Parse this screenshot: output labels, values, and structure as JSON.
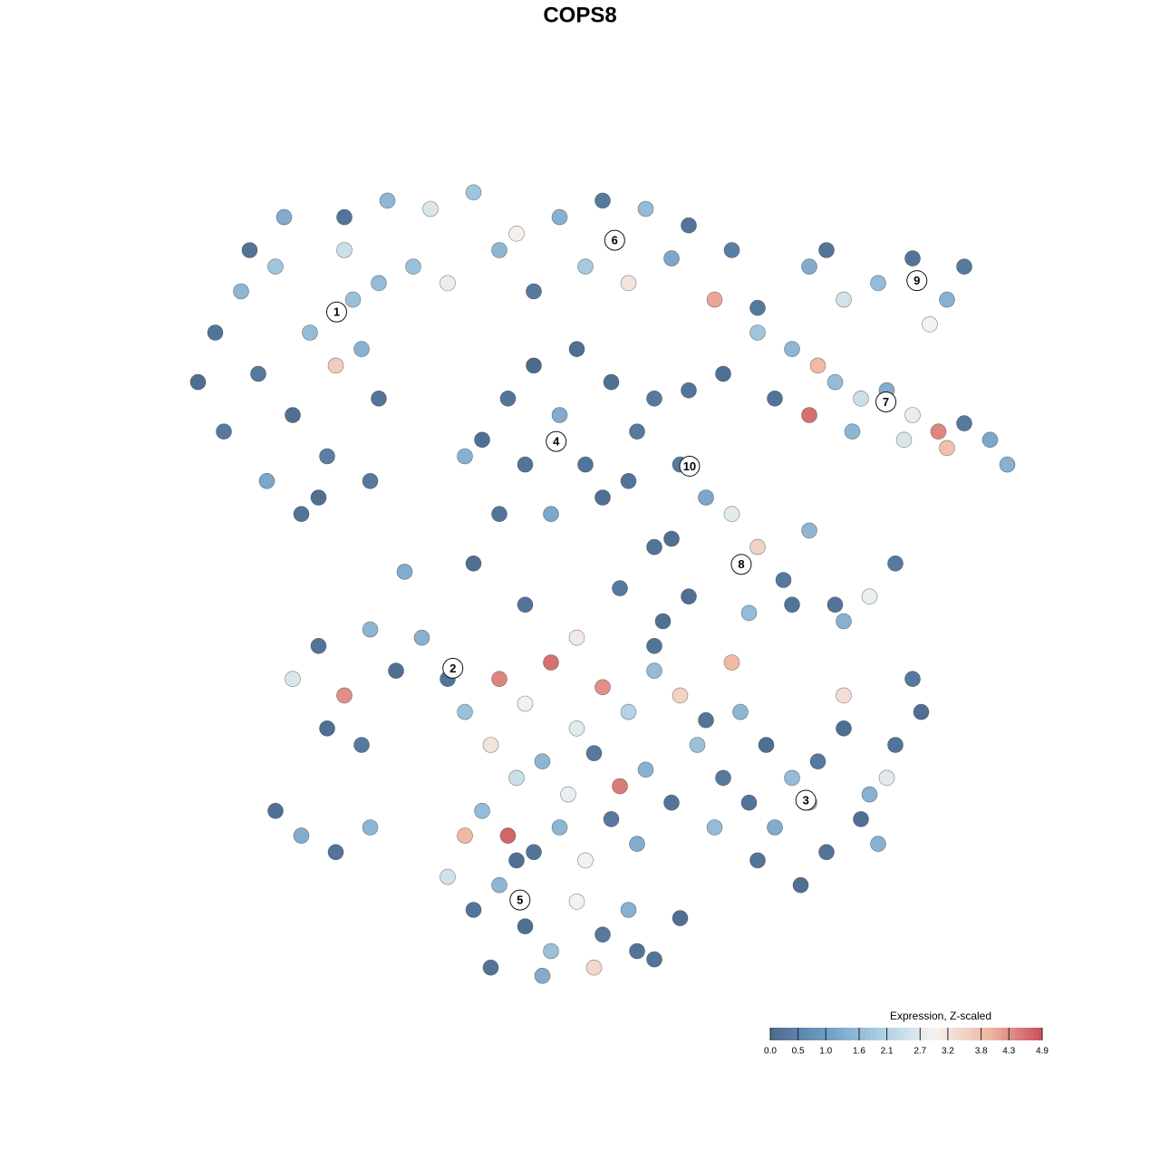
{
  "chart_data": {
    "type": "scatter",
    "title": "COPS8",
    "xlim": [
      -50,
      50
    ],
    "ylim": [
      -50,
      50
    ],
    "x": [
      -45,
      -42,
      -40,
      -38,
      -36,
      -34,
      -32,
      -30,
      -28,
      -26,
      -47,
      -44,
      -39,
      -35,
      -33,
      -31,
      -29,
      -27,
      -37,
      -41,
      -30,
      -25,
      -20,
      -15,
      -10,
      -5,
      0,
      5,
      10,
      15,
      -22,
      -18,
      -12,
      -8,
      -2,
      3,
      8,
      13,
      18,
      -26,
      -14,
      -11,
      -8,
      -5,
      -2,
      1,
      4,
      -12,
      -6,
      0,
      -9,
      -3,
      3,
      6,
      10,
      14,
      9,
      12,
      -16,
      8,
      18,
      22,
      25,
      27,
      30,
      33,
      36,
      39,
      42,
      45,
      20,
      24,
      29,
      35,
      40,
      47,
      24,
      28,
      32,
      36,
      40,
      42,
      38,
      26,
      15,
      18,
      21,
      24,
      27,
      31,
      34,
      17,
      22,
      28,
      10,
      6,
      -23,
      -15,
      -9,
      2,
      -36,
      -33,
      -30,
      -27,
      -24,
      -21,
      -18,
      -32,
      -28,
      -16,
      -12,
      -9,
      -6,
      -3,
      0,
      3,
      6,
      9,
      12,
      15,
      -13,
      -10,
      -7,
      -4,
      -1,
      2,
      5,
      8,
      11,
      14,
      -14,
      -11,
      -8,
      -5,
      -2,
      1,
      4,
      7,
      -3,
      6,
      16,
      19,
      22,
      25,
      28,
      31,
      34,
      37,
      20,
      26,
      30,
      33,
      24,
      17,
      28,
      36,
      13,
      18,
      32,
      23,
      -18,
      -15,
      -12,
      -9,
      -6,
      -3,
      0,
      3,
      6,
      9,
      -13,
      -7,
      -1,
      4,
      -10,
      -16,
      -38,
      -35,
      -31,
      -27
    ],
    "y": [
      30,
      35,
      25,
      38,
      20,
      30,
      15,
      40,
      28,
      22,
      24,
      18,
      12,
      8,
      10,
      26,
      34,
      12,
      44,
      40,
      44,
      46,
      45,
      47,
      42,
      44,
      46,
      45,
      43,
      40,
      38,
      36,
      40,
      35,
      38,
      36,
      39,
      34,
      33,
      36,
      17,
      22,
      26,
      20,
      14,
      24,
      18,
      8,
      8,
      10,
      14,
      28,
      12,
      22,
      23,
      25,
      14,
      10,
      15,
      5,
      30,
      28,
      26,
      24,
      22,
      23,
      20,
      18,
      19,
      17,
      22,
      20,
      18,
      17,
      16,
      14,
      38,
      34,
      36,
      39,
      34,
      38,
      31,
      40,
      8,
      4,
      0,
      6,
      -3,
      -2,
      2,
      -4,
      -3,
      -5,
      -2,
      4,
      1,
      2,
      -3,
      -1,
      -12,
      -8,
      -14,
      -6,
      -11,
      -7,
      -12,
      -18,
      -20,
      -16,
      -12,
      -15,
      -10,
      -18,
      -13,
      -16,
      -11,
      -14,
      -17,
      -10,
      -20,
      -24,
      -22,
      -26,
      -21,
      -25,
      -23,
      -27,
      -20,
      -24,
      -28,
      -31,
      -33,
      -30,
      -34,
      -29,
      -32,
      -5,
      -7,
      -8,
      -16,
      -20,
      -24,
      -22,
      -18,
      -26,
      -20,
      -16,
      -30,
      -33,
      -29,
      -24,
      -27,
      -27,
      -14,
      -12,
      -30,
      -34,
      -32,
      -37,
      -36,
      -40,
      -37,
      -42,
      -45,
      -39,
      -43,
      -40,
      -46,
      -41,
      -47,
      -48,
      -47,
      -45,
      -34,
      -31,
      -28,
      -31,
      -33,
      -30
    ],
    "values": [
      0.2,
      1.5,
      0.3,
      1.8,
      0.1,
      1.6,
      0.4,
      2.4,
      1.4,
      0.2,
      0.1,
      0.3,
      1.2,
      0.2,
      0.1,
      3.6,
      1.7,
      0.3,
      1.3,
      0.2,
      0.2,
      1.5,
      2.6,
      1.8,
      3.0,
      1.4,
      0.3,
      1.6,
      0.2,
      0.4,
      1.7,
      2.8,
      1.5,
      0.3,
      1.9,
      3.2,
      1.2,
      4.1,
      0.3,
      1.6,
      0.1,
      0.2,
      0.0,
      1.3,
      0.2,
      0.1,
      0.3,
      0.2,
      1.2,
      0.1,
      0.2,
      0.1,
      0.2,
      0.3,
      0.2,
      0.1,
      0.3,
      1.2,
      1.4,
      0.1,
      1.8,
      1.5,
      3.9,
      1.6,
      2.4,
      1.3,
      3.1,
      4.4,
      0.3,
      1.2,
      0.2,
      4.6,
      1.5,
      2.6,
      3.8,
      1.4,
      1.3,
      2.5,
      1.6,
      0.2,
      1.4,
      0.3,
      2.9,
      0.2,
      2.7,
      3.5,
      0.3,
      1.5,
      0.2,
      2.8,
      0.3,
      1.6,
      0.2,
      1.4,
      0.1,
      0.2,
      1.3,
      0.1,
      0.2,
      0.3,
      2.6,
      0.2,
      4.3,
      1.5,
      0.1,
      1.4,
      0.2,
      0.1,
      0.3,
      1.7,
      4.4,
      3.0,
      4.6,
      2.7,
      4.3,
      2.1,
      1.6,
      3.5,
      0.2,
      3.9,
      3.2,
      2.4,
      1.5,
      2.8,
      0.3,
      4.5,
      1.4,
      0.2,
      1.7,
      0.3,
      1.6,
      4.7,
      0.2,
      1.5,
      2.9,
      0.3,
      1.3,
      0.1,
      3.1,
      0.2,
      1.5,
      0.1,
      1.6,
      0.3,
      0.1,
      1.4,
      0.2,
      0.1,
      1.3,
      0.2,
      0.1,
      2.7,
      1.4,
      0.2,
      3.3,
      0.3,
      1.6,
      0.2,
      1.4,
      0.1,
      2.5,
      0.2,
      1.5,
      0.1,
      1.7,
      2.9,
      0.3,
      1.4,
      0.2,
      0.1,
      0.2,
      1.3,
      3.4,
      0.2,
      0.1,
      3.9,
      0.1,
      1.3,
      0.2,
      1.5
    ],
    "clusters": [
      {
        "label": "1",
        "x": -30.9,
        "y": 32.5
      },
      {
        "label": "2",
        "x": -17.4,
        "y": -10.7
      },
      {
        "label": "3",
        "x": 23.6,
        "y": -26.7
      },
      {
        "label": "4",
        "x": -5.4,
        "y": 16.8
      },
      {
        "label": "5",
        "x": -9.6,
        "y": -38.8
      },
      {
        "label": "6",
        "x": 1.4,
        "y": 41.2
      },
      {
        "label": "7",
        "x": 32.9,
        "y": 21.6
      },
      {
        "label": "8",
        "x": 16.1,
        "y": 1.9
      },
      {
        "label": "9",
        "x": 36.5,
        "y": 36.3
      },
      {
        "label": "10",
        "x": 10.1,
        "y": 13.8
      }
    ],
    "colorbar": {
      "title": "Expression, Z-scaled",
      "lim": [
        0,
        4.9
      ],
      "ticks": [
        {
          "value": 0,
          "label": "0.0"
        },
        0.5,
        {
          "value": 1,
          "label": "1.0"
        },
        1.6,
        2.1,
        2.7,
        3.2,
        3.8,
        4.3,
        4.9
      ],
      "colors": [
        "#4b6a8e",
        "#6f9bc3",
        "#a9cde2",
        "#f4f4f2",
        "#f0b9a3",
        "#c9505b"
      ]
    }
  }
}
